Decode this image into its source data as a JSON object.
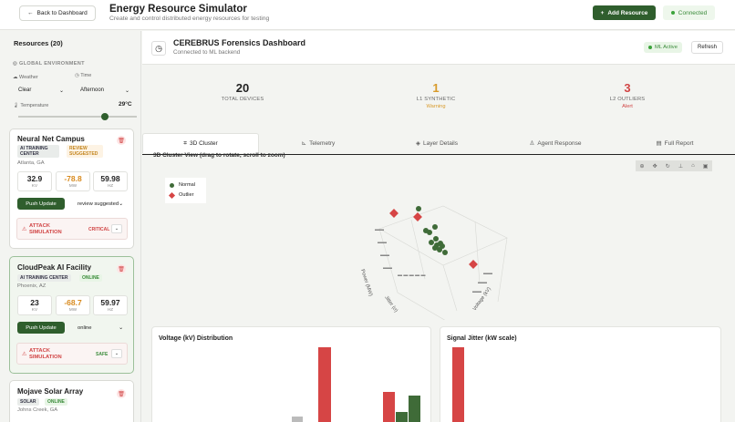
{
  "header": {
    "back_label": "Back to Dashboard",
    "title": "Energy Resource Simulator",
    "subtitle": "Create and control distributed energy resources for testing",
    "add_label": "Add Resource",
    "connection": "Connected"
  },
  "sidebar": {
    "title": "Resources (20)",
    "environment": {
      "label": "GLOBAL ENVIRONMENT",
      "weather_label": "Weather",
      "weather_value": "Clear",
      "time_label": "Time",
      "time_value": "Afternoon",
      "temperature_label": "Temperature",
      "temperature_value": "29°C"
    },
    "cards": [
      {
        "name": "Neural Net Campus",
        "type": "AI TRAINING CENTER",
        "status_tag": "REVIEW SUGGESTED",
        "location": "Atlanta, GA",
        "kv": "32.9",
        "kv_unit": "KV",
        "mw": "-78.8",
        "mw_unit": "MW",
        "hz": "59.98",
        "hz_unit": "HZ",
        "push_label": "Push Update",
        "status_select": "review suggested",
        "attack_label": "ATTACK SIMULATION",
        "attack_state": "CRITICAL"
      },
      {
        "name": "CloudPeak AI Facility",
        "type": "AI TRAINING CENTER",
        "status_tag": "ONLINE",
        "location": "Phoenix, AZ",
        "kv": "23",
        "kv_unit": "KV",
        "mw": "-68.7",
        "mw_unit": "MW",
        "hz": "59.97",
        "hz_unit": "HZ",
        "push_label": "Push Update",
        "status_select": "online",
        "attack_label": "ATTACK SIMULATION",
        "attack_state": "SAFE"
      },
      {
        "name": "Mojave Solar Array",
        "type": "SOLAR",
        "status_tag": "ONLINE",
        "location": "Johns Creek, GA"
      }
    ]
  },
  "dashboard": {
    "title": "CEREBRUS Forensics Dashboard",
    "subtitle": "Connected to ML backend",
    "ml_badge": "ML Active",
    "refresh_label": "Refresh",
    "stats": [
      {
        "value": "20",
        "label": "TOTAL DEVICES",
        "sub": ""
      },
      {
        "value": "1",
        "label": "L1 SYNTHETIC",
        "sub": "Warning"
      },
      {
        "value": "3",
        "label": "L2 OUTLIERS",
        "sub": "Alert"
      }
    ],
    "stat_colors": [
      "#222222",
      "#d89a2a",
      "#d14545"
    ],
    "tabs": [
      "3D Cluster",
      "Telemetry",
      "Layer Details",
      "Agent Response",
      "Full Report"
    ],
    "active_tab": "3D Cluster"
  },
  "cluster": {
    "title": "3D Cluster View (drag to rotate, scroll to zoom)",
    "legend": [
      "Normal",
      "Outlier"
    ],
    "axes": [
      "Power (MW)",
      "Jitter (σ)",
      "Voltage (kV)"
    ],
    "colors": {
      "normal": "#3f6b38",
      "outlier": "#d64545"
    }
  },
  "voltage_chart": {
    "title": "Voltage (kV) Distribution"
  },
  "jitter_chart": {
    "title": "Signal Jitter (kW scale)"
  }
}
